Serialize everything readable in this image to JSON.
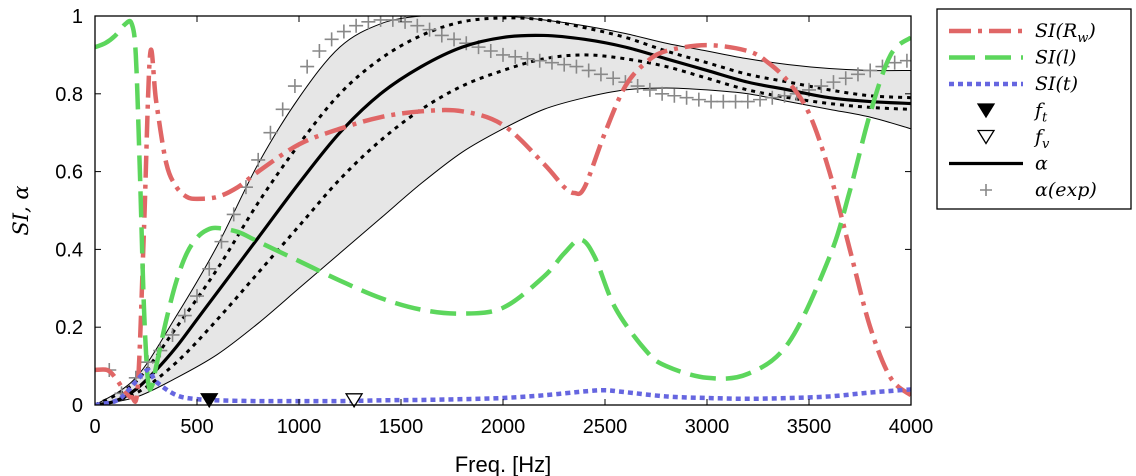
{
  "chart_data": {
    "type": "line",
    "xlabel": "Freq. [Hz]",
    "ylabel": "SI, α",
    "xlim": [
      0,
      4000
    ],
    "ylim": [
      0,
      1
    ],
    "xticks": [
      0,
      500,
      1000,
      1500,
      2000,
      2500,
      3000,
      3500,
      4000
    ],
    "yticks": [
      0,
      0.2,
      0.4,
      0.6,
      0.8,
      1
    ],
    "ytick_labels": [
      "0",
      "0.2",
      "0.4",
      "0.6",
      "0.8",
      "1"
    ],
    "grid": false,
    "legend_position": "outside-right-top",
    "colors": {
      "si_rw": "#e06666",
      "si_l": "#5cd65c",
      "si_t": "#6666e0",
      "alpha": "#000000",
      "alpha_exp": "#888888",
      "band_fill": "#e6e6e6",
      "band_edge": "#000000"
    },
    "series": [
      {
        "key": "si_rw",
        "name": "SI(Rw)",
        "style": "dash-dot",
        "x": [
          0,
          60,
          100,
          140,
          180,
          210,
          240,
          270,
          300,
          350,
          400,
          450,
          500,
          600,
          700,
          800,
          1000,
          1200,
          1400,
          1600,
          1800,
          2000,
          2200,
          2300,
          2350,
          2400,
          2500,
          2600,
          2700,
          2800,
          3000,
          3200,
          3300,
          3400,
          3500,
          3600,
          3700,
          3800,
          3900,
          4000
        ],
        "y": [
          0.09,
          0.09,
          0.07,
          0.04,
          0.02,
          0.05,
          0.45,
          0.9,
          0.78,
          0.62,
          0.56,
          0.535,
          0.53,
          0.535,
          0.56,
          0.6,
          0.67,
          0.71,
          0.74,
          0.755,
          0.755,
          0.72,
          0.62,
          0.56,
          0.545,
          0.56,
          0.7,
          0.82,
          0.88,
          0.91,
          0.925,
          0.91,
          0.88,
          0.83,
          0.75,
          0.6,
          0.4,
          0.2,
          0.07,
          0.025
        ]
      },
      {
        "key": "si_l",
        "name": "SI(l)",
        "style": "dashed",
        "x": [
          0,
          50,
          100,
          150,
          180,
          200,
          220,
          240,
          260,
          280,
          300,
          350,
          400,
          450,
          500,
          550,
          600,
          700,
          800,
          1000,
          1200,
          1400,
          1600,
          1800,
          2000,
          2200,
          2300,
          2380,
          2450,
          2550,
          2700,
          2800,
          3000,
          3200,
          3400,
          3600,
          3700,
          3800,
          3900,
          4000
        ],
        "y": [
          0.92,
          0.93,
          0.95,
          0.98,
          0.98,
          0.9,
          0.6,
          0.25,
          0.06,
          0.05,
          0.1,
          0.22,
          0.32,
          0.39,
          0.43,
          0.45,
          0.455,
          0.445,
          0.42,
          0.37,
          0.32,
          0.275,
          0.245,
          0.235,
          0.25,
          0.33,
          0.39,
          0.425,
          0.38,
          0.25,
          0.14,
          0.1,
          0.07,
          0.08,
          0.16,
          0.38,
          0.55,
          0.75,
          0.9,
          0.945
        ]
      },
      {
        "key": "si_t",
        "name": "SI(t)",
        "style": "dotted",
        "x": [
          0,
          100,
          150,
          200,
          260,
          300,
          400,
          500,
          600,
          800,
          1000,
          1200,
          1400,
          1600,
          1800,
          2000,
          2200,
          2400,
          2500,
          2600,
          2800,
          3000,
          3200,
          3400,
          3600,
          3800,
          4000
        ],
        "y": [
          0.0,
          0.01,
          0.03,
          0.06,
          0.09,
          0.06,
          0.025,
          0.015,
          0.012,
          0.01,
          0.01,
          0.01,
          0.012,
          0.013,
          0.015,
          0.018,
          0.025,
          0.035,
          0.038,
          0.033,
          0.022,
          0.018,
          0.016,
          0.018,
          0.022,
          0.032,
          0.04
        ]
      },
      {
        "key": "alpha",
        "name": "α",
        "style": "solid",
        "x": [
          0,
          100,
          200,
          300,
          400,
          500,
          600,
          800,
          1000,
          1200,
          1400,
          1600,
          1800,
          2000,
          2200,
          2400,
          2600,
          2800,
          3000,
          3200,
          3400,
          3600,
          3800,
          4000
        ],
        "y": [
          0.0,
          0.01,
          0.04,
          0.09,
          0.15,
          0.22,
          0.29,
          0.43,
          0.57,
          0.7,
          0.8,
          0.87,
          0.92,
          0.945,
          0.95,
          0.94,
          0.92,
          0.89,
          0.86,
          0.83,
          0.81,
          0.79,
          0.78,
          0.775
        ]
      },
      {
        "key": "band_upper",
        "name": "",
        "style": "dotted-black",
        "x": [
          0,
          200,
          400,
          600,
          800,
          1000,
          1200,
          1400,
          1600,
          1800,
          2000,
          2200,
          2400,
          2600,
          2800,
          3000,
          3200,
          3400,
          3600,
          3800,
          4000
        ],
        "y": [
          0.0,
          0.06,
          0.2,
          0.35,
          0.52,
          0.67,
          0.8,
          0.89,
          0.95,
          0.985,
          0.995,
          0.99,
          0.97,
          0.945,
          0.91,
          0.88,
          0.85,
          0.83,
          0.81,
          0.795,
          0.79
        ]
      },
      {
        "key": "band_lower",
        "name": "",
        "style": "dotted-black",
        "x": [
          0,
          200,
          400,
          600,
          800,
          1000,
          1200,
          1400,
          1600,
          1800,
          2000,
          2200,
          2400,
          2600,
          2800,
          3000,
          3200,
          3400,
          3600,
          3800,
          4000
        ],
        "y": [
          0.0,
          0.03,
          0.11,
          0.22,
          0.34,
          0.46,
          0.58,
          0.68,
          0.76,
          0.82,
          0.86,
          0.89,
          0.9,
          0.89,
          0.87,
          0.84,
          0.81,
          0.79,
          0.775,
          0.765,
          0.76
        ]
      },
      {
        "key": "alpha_exp",
        "name": "α(exp)",
        "style": "plus-markers",
        "x": [
          70,
          130,
          200,
          260,
          320,
          380,
          440,
          500,
          560,
          620,
          680,
          740,
          800,
          860,
          920,
          980,
          1040,
          1100,
          1160,
          1220,
          1280,
          1340,
          1400,
          1460,
          1520,
          1580,
          1640,
          1700,
          1760,
          1820,
          1880,
          1940,
          2000,
          2060,
          2120,
          2180,
          2240,
          2300,
          2360,
          2420,
          2480,
          2540,
          2600,
          2660,
          2720,
          2780,
          2840,
          2900,
          2960,
          3020,
          3080,
          3140,
          3200,
          3260,
          3320,
          3380,
          3440,
          3500,
          3560,
          3620,
          3680,
          3740,
          3800,
          3860,
          3920,
          3980
        ],
        "y": [
          0.09,
          0.03,
          0.07,
          0.11,
          0.14,
          0.18,
          0.23,
          0.28,
          0.35,
          0.42,
          0.49,
          0.56,
          0.63,
          0.7,
          0.76,
          0.82,
          0.87,
          0.91,
          0.94,
          0.96,
          0.975,
          0.985,
          0.99,
          0.99,
          0.985,
          0.975,
          0.965,
          0.95,
          0.94,
          0.93,
          0.92,
          0.91,
          0.9,
          0.895,
          0.89,
          0.885,
          0.88,
          0.875,
          0.87,
          0.86,
          0.85,
          0.84,
          0.83,
          0.82,
          0.81,
          0.8,
          0.795,
          0.79,
          0.785,
          0.78,
          0.78,
          0.78,
          0.78,
          0.785,
          0.79,
          0.795,
          0.8,
          0.81,
          0.82,
          0.83,
          0.84,
          0.85,
          0.86,
          0.87,
          0.88,
          0.885
        ]
      },
      {
        "key": "shaded_band",
        "name": "",
        "style": "fill",
        "x": [
          0,
          200,
          400,
          600,
          800,
          1000,
          1200,
          1400,
          1600,
          1800,
          2000,
          2200,
          2400,
          2600,
          2800,
          3000,
          3200,
          3400,
          3600,
          3800,
          4000
        ],
        "y_upper": [
          0.0,
          0.07,
          0.23,
          0.41,
          0.62,
          0.79,
          0.92,
          0.98,
          1.0,
          1.0,
          1.0,
          0.99,
          0.975,
          0.955,
          0.93,
          0.91,
          0.89,
          0.875,
          0.865,
          0.86,
          0.86
        ],
        "y_lower": [
          0.0,
          0.02,
          0.07,
          0.13,
          0.21,
          0.3,
          0.39,
          0.48,
          0.57,
          0.65,
          0.71,
          0.76,
          0.79,
          0.81,
          0.815,
          0.81,
          0.8,
          0.78,
          0.76,
          0.74,
          0.71
        ]
      }
    ],
    "markers": [
      {
        "key": "f_t",
        "name": "ft",
        "x": 560,
        "y": 0.012,
        "shape": "filled-down-triangle"
      },
      {
        "key": "f_v",
        "name": "fv",
        "x": 1270,
        "y": 0.012,
        "shape": "open-down-triangle"
      }
    ],
    "legend": [
      {
        "key": "si_rw",
        "base": "SI(R",
        "sub": "w",
        "tail": ")"
      },
      {
        "key": "si_l",
        "base": "SI(l)",
        "sub": "",
        "tail": ""
      },
      {
        "key": "si_t",
        "base": "SI(t)",
        "sub": "",
        "tail": ""
      },
      {
        "key": "f_t",
        "base": "f",
        "sub": "t",
        "tail": ""
      },
      {
        "key": "f_v",
        "base": "f",
        "sub": "v",
        "tail": ""
      },
      {
        "key": "alpha",
        "base": "α",
        "sub": "",
        "tail": ""
      },
      {
        "key": "alpha_exp",
        "base": "α(exp)",
        "sub": "",
        "tail": ""
      }
    ]
  }
}
